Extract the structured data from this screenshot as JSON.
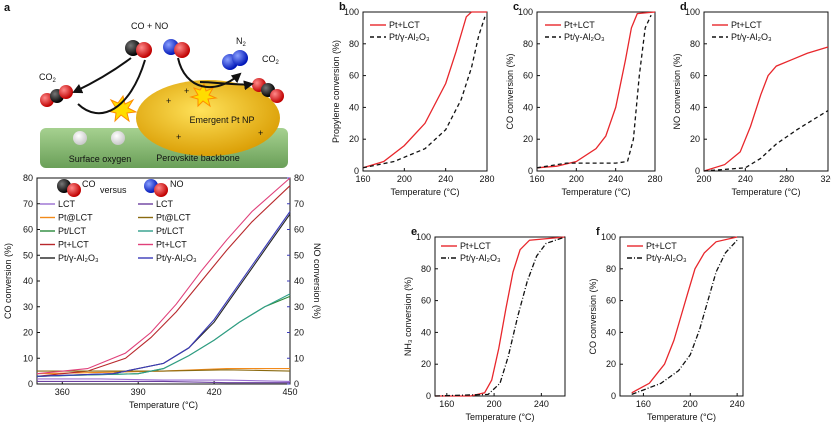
{
  "figure": {
    "schematic": {
      "label": "a",
      "co_no": "CO + NO",
      "co2_left": "CO",
      "co2_left_sub": "2",
      "n2": "N",
      "n2_sub": "2",
      "co2_right": "CO",
      "co2_right_sub": "2",
      "particle": "Emergent Pt NP",
      "surface_oxygen": "Surface oxygen",
      "backbone": "Perovskite backbone",
      "colors": {
        "particle": "#e8b400",
        "backbone": "#8bbd78",
        "carbon": "#111111",
        "oxygen": "#e01515",
        "nitrogen": "#1a3be6"
      }
    }
  },
  "chart_data": [
    {
      "id": "a",
      "type": "line",
      "legend_title": {
        "left": "CO",
        "middle": "versus",
        "right": "NO"
      },
      "xlabel": "Temperature (°C)",
      "ylabel": "CO conversion (%)",
      "y2label": "NO conversion (%)",
      "xlim": [
        350,
        450
      ],
      "ylim": [
        0,
        80
      ],
      "xticks": [
        360,
        390,
        420,
        450
      ],
      "yticks": [
        0,
        10,
        20,
        30,
        40,
        50,
        60,
        70,
        80
      ],
      "legend_left": [
        "LCT",
        "Pt@LCT",
        "Pt/LCT",
        "Pt+LCT",
        "Pt/γ-Al₂O₃"
      ],
      "legend_right": [
        "LCT",
        "Pt@LCT",
        "Pt/LCT",
        "Pt+LCT",
        "Pt/γ-Al₂O₃"
      ],
      "series": [
        {
          "name": "LCT",
          "axis": "CO",
          "color": "#9a6fd1",
          "x": [
            350,
            375,
            400,
            425,
            450
          ],
          "y": [
            2,
            2,
            1.5,
            1.5,
            1
          ]
        },
        {
          "name": "Pt@LCT",
          "axis": "CO",
          "color": "#f28a1a",
          "x": [
            350,
            375,
            400,
            425,
            450
          ],
          "y": [
            4,
            4.5,
            5,
            6,
            6
          ]
        },
        {
          "name": "Pt/LCT",
          "axis": "CO",
          "color": "#2a8a3a",
          "x": [
            350,
            370,
            390,
            400,
            410,
            420,
            430,
            440,
            450
          ],
          "y": [
            3,
            3.5,
            4,
            6,
            11,
            17,
            24,
            30,
            34
          ]
        },
        {
          "name": "Pt+LCT",
          "axis": "CO",
          "color": "#b8282c",
          "x": [
            350,
            370,
            385,
            395,
            405,
            415,
            425,
            435,
            450
          ],
          "y": [
            3,
            5,
            10,
            18,
            28,
            40,
            52,
            63,
            77
          ]
        },
        {
          "name": "Pt/γ-Al₂O₃",
          "axis": "CO",
          "color": "#222222",
          "x": [
            350,
            380,
            400,
            410,
            420,
            430,
            440,
            450
          ],
          "y": [
            3,
            4,
            8,
            14,
            24,
            38,
            52,
            66
          ]
        },
        {
          "name": "LCT",
          "axis": "NO",
          "color": "#6b3fa0",
          "x": [
            350,
            375,
            400,
            425,
            450
          ],
          "y": [
            1,
            1,
            1,
            0.5,
            0.5
          ]
        },
        {
          "name": "Pt@LCT",
          "axis": "NO",
          "color": "#8a6a10",
          "x": [
            350,
            375,
            400,
            425,
            450
          ],
          "y": [
            5,
            5,
            5,
            5.5,
            5
          ]
        },
        {
          "name": "Pt/LCT",
          "axis": "NO",
          "color": "#2e9e8a",
          "x": [
            350,
            370,
            390,
            400,
            410,
            420,
            430,
            440,
            450
          ],
          "y": [
            3,
            3.5,
            4,
            6,
            11,
            17,
            24,
            30,
            35
          ]
        },
        {
          "name": "Pt+LCT",
          "axis": "NO",
          "color": "#e0407a",
          "x": [
            350,
            370,
            385,
            395,
            405,
            415,
            425,
            435,
            450
          ],
          "y": [
            4,
            6,
            12,
            20,
            31,
            44,
            56,
            67,
            80
          ]
        },
        {
          "name": "Pt/γ-Al₂O₃",
          "axis": "NO",
          "color": "#3a3ab8",
          "x": [
            350,
            380,
            400,
            410,
            420,
            430,
            440,
            450
          ],
          "y": [
            3,
            4,
            8,
            14,
            25,
            39,
            53,
            67
          ]
        }
      ]
    },
    {
      "id": "b",
      "type": "line",
      "xlabel": "Temperature (°C)",
      "ylabel": "Propylene conversion (%)",
      "xlim": [
        160,
        280
      ],
      "ylim": [
        0,
        100
      ],
      "xticks": [
        160,
        200,
        240,
        280
      ],
      "yticks": [
        0,
        20,
        40,
        60,
        80,
        100
      ],
      "series": [
        {
          "name": "Pt+LCT",
          "style": "solid",
          "color": "#e8272c",
          "x": [
            160,
            180,
            200,
            220,
            240,
            250,
            260,
            265,
            280
          ],
          "y": [
            2,
            6,
            16,
            30,
            55,
            75,
            97,
            100,
            100
          ]
        },
        {
          "name": "Pt/γ-Al₂O₃",
          "style": "dashed",
          "color": "#111111",
          "x": [
            160,
            190,
            220,
            240,
            255,
            265,
            272,
            278
          ],
          "y": [
            2,
            6,
            14,
            26,
            45,
            65,
            85,
            97
          ]
        }
      ]
    },
    {
      "id": "c",
      "type": "line",
      "xlabel": "Temperature (°C)",
      "ylabel": "CO conversion (%)",
      "xlim": [
        160,
        280
      ],
      "ylim": [
        0,
        100
      ],
      "xticks": [
        160,
        200,
        240,
        280
      ],
      "yticks": [
        0,
        20,
        40,
        60,
        80,
        100
      ],
      "series": [
        {
          "name": "Pt+LCT",
          "style": "solid",
          "color": "#e8272c",
          "x": [
            160,
            180,
            200,
            220,
            230,
            240,
            250,
            256,
            262,
            280
          ],
          "y": [
            2,
            3,
            6,
            14,
            22,
            40,
            70,
            90,
            99,
            100
          ]
        },
        {
          "name": "Pt/γ-Al₂O₃",
          "style": "dashed",
          "color": "#111111",
          "x": [
            160,
            190,
            240,
            252,
            258,
            264,
            270,
            276
          ],
          "y": [
            2,
            5,
            5,
            6,
            20,
            60,
            90,
            98
          ]
        }
      ]
    },
    {
      "id": "d",
      "type": "line",
      "xlabel": "Temperature (°C)",
      "ylabel": "NO conversion (%)",
      "xlim": [
        200,
        320
      ],
      "ylim": [
        0,
        100
      ],
      "xticks": [
        200,
        240,
        280,
        320
      ],
      "yticks": [
        0,
        20,
        40,
        60,
        80,
        100
      ],
      "series": [
        {
          "name": "Pt+LCT",
          "style": "solid",
          "color": "#e8272c",
          "x": [
            200,
            220,
            235,
            245,
            255,
            262,
            270,
            285,
            300,
            320
          ],
          "y": [
            0,
            4,
            12,
            28,
            48,
            60,
            66,
            70,
            74,
            78
          ]
        },
        {
          "name": "Pt/γ-Al₂O₃",
          "style": "dashed",
          "color": "#111111",
          "x": [
            200,
            240,
            255,
            270,
            290,
            305,
            320
          ],
          "y": [
            0,
            2,
            8,
            17,
            26,
            32,
            38
          ]
        }
      ]
    },
    {
      "id": "e",
      "type": "line",
      "xlabel": "Temperature (°C)",
      "ylabel": "NH₃ conversion (%)",
      "xlim": [
        150,
        260
      ],
      "ylim": [
        0,
        100
      ],
      "xticks": [
        160,
        200,
        240
      ],
      "yticks": [
        0,
        20,
        40,
        60,
        80,
        100
      ],
      "series": [
        {
          "name": "Pt+LCT",
          "style": "solid",
          "color": "#e8272c",
          "x": [
            150,
            180,
            192,
            198,
            204,
            210,
            216,
            222,
            230,
            260
          ],
          "y": [
            0,
            0,
            2,
            10,
            30,
            55,
            78,
            92,
            98,
            100
          ]
        },
        {
          "name": "Pt/γ-Al₂O₃",
          "style": "dashdot",
          "color": "#111111",
          "x": [
            150,
            195,
            205,
            212,
            220,
            228,
            236,
            244,
            260
          ],
          "y": [
            0,
            1,
            8,
            25,
            50,
            72,
            88,
            96,
            100
          ]
        }
      ]
    },
    {
      "id": "f",
      "type": "line",
      "xlabel": "Temperature (°C)",
      "ylabel": "CO conversion (%)",
      "xlim": [
        140,
        245
      ],
      "ylim": [
        0,
        100
      ],
      "xticks": [
        160,
        200,
        240
      ],
      "yticks": [
        0,
        20,
        40,
        60,
        80,
        100
      ],
      "series": [
        {
          "name": "Pt+LCT",
          "style": "solid",
          "color": "#e8272c",
          "x": [
            150,
            165,
            178,
            186,
            192,
            198,
            204,
            212,
            222,
            240
          ],
          "y": [
            2,
            8,
            20,
            35,
            50,
            65,
            80,
            90,
            97,
            100
          ]
        },
        {
          "name": "Pt/γ-Al₂O₃",
          "style": "dashdot",
          "color": "#111111",
          "x": [
            150,
            175,
            190,
            200,
            208,
            215,
            222,
            230,
            240
          ],
          "y": [
            1,
            8,
            16,
            26,
            42,
            60,
            78,
            90,
            98
          ]
        }
      ]
    }
  ]
}
